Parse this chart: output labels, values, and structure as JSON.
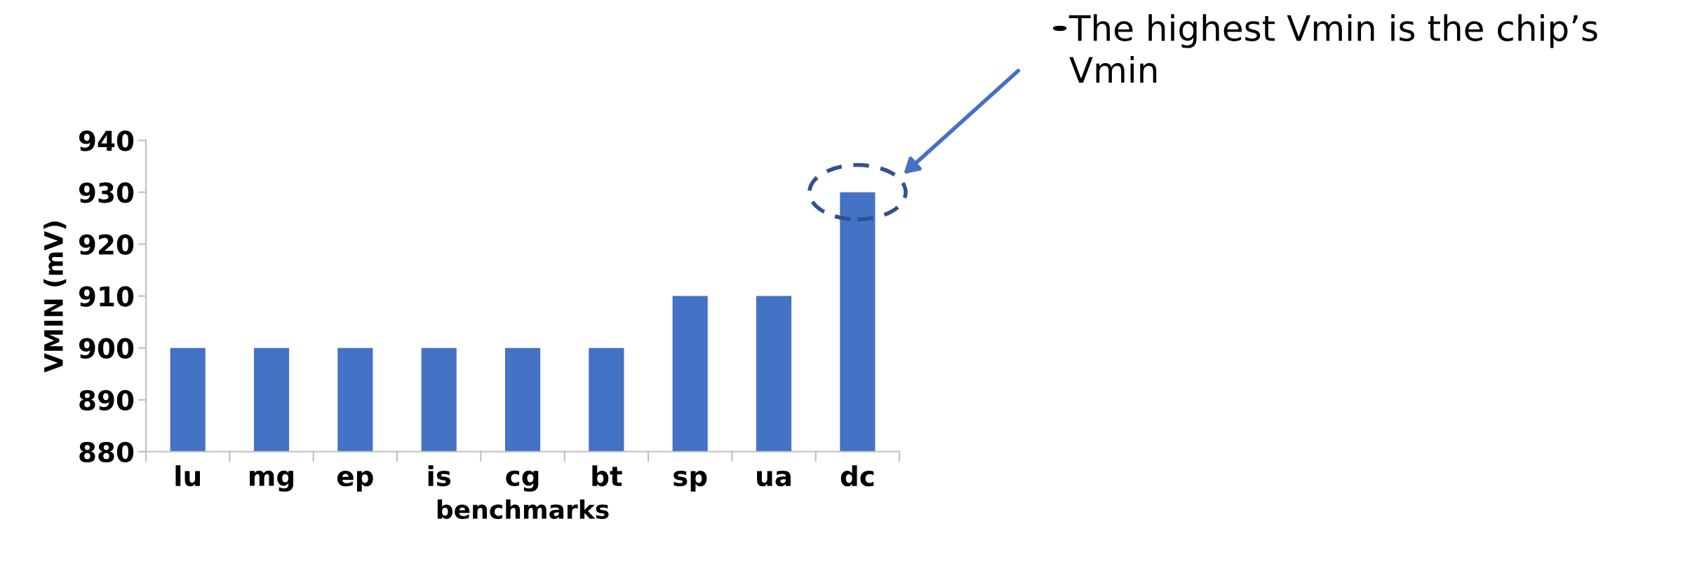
{
  "chart_data": {
    "type": "bar",
    "xlabel": "benchmarks",
    "ylabel": "VMIN (mV)",
    "categories": [
      "lu",
      "mg",
      "ep",
      "is",
      "cg",
      "bt",
      "sp",
      "ua",
      "dc"
    ],
    "values": [
      900,
      900,
      900,
      900,
      900,
      900,
      910,
      910,
      930
    ],
    "color": "#4472c4",
    "ylim": [
      880,
      940
    ],
    "yticks": [
      880,
      890,
      900,
      910,
      920,
      930,
      940
    ],
    "grid": false,
    "legend": false,
    "annotations": [
      "The highest Vmin is the chip’s\nVmin"
    ]
  }
}
